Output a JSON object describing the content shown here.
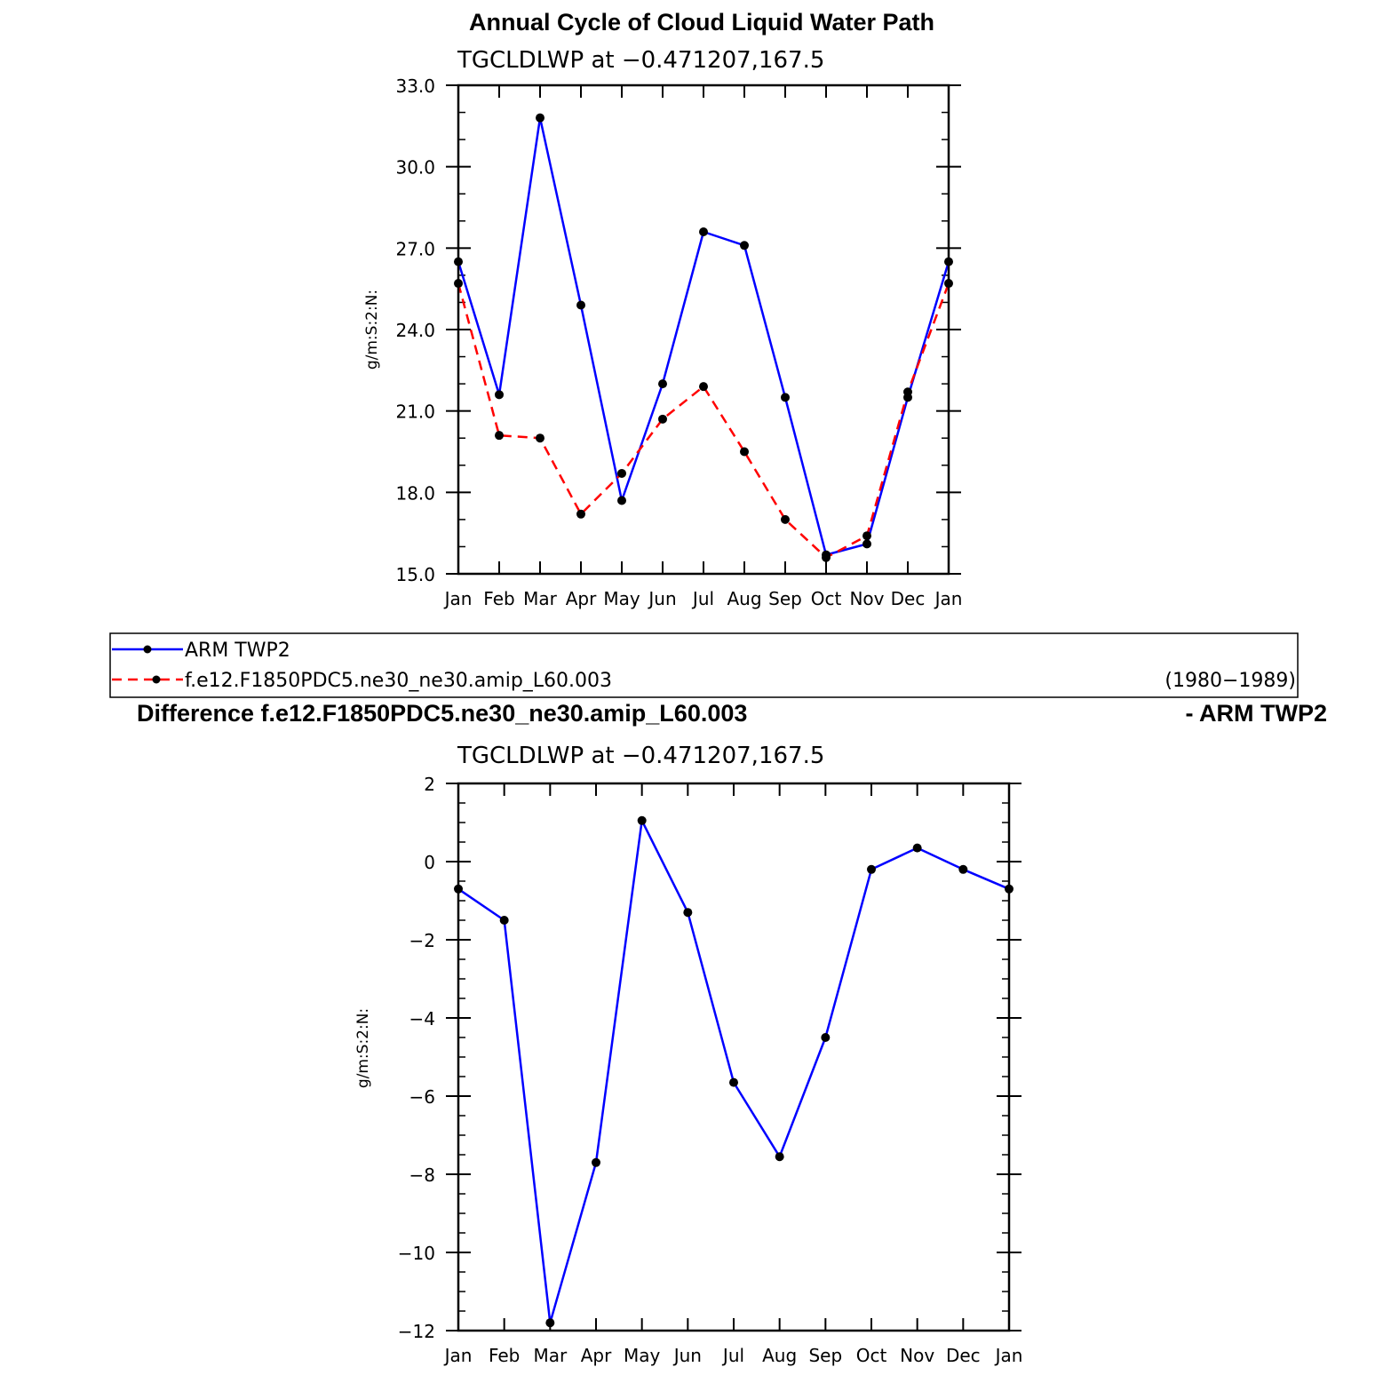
{
  "chart_data": [
    {
      "type": "line",
      "title": "Annual Cycle of Cloud Liquid Water Path",
      "subtitle": "TGCLDLWP  at  −0.471207,167.5",
      "ylabel": "g/m:S:2:N:",
      "ylim": [
        15.0,
        33.0
      ],
      "yticks": [
        "15.0",
        "18.0",
        "21.0",
        "24.0",
        "27.0",
        "30.0",
        "33.0"
      ],
      "categories": [
        "Jan",
        "Feb",
        "Mar",
        "Apr",
        "May",
        "Jun",
        "Jul",
        "Aug",
        "Sep",
        "Oct",
        "Nov",
        "Dec",
        "Jan"
      ],
      "series": [
        {
          "name": "ARM  TWP2",
          "color": "#0000ff",
          "dash": "solid",
          "values": [
            26.5,
            21.6,
            31.8,
            24.9,
            17.7,
            22.0,
            27.6,
            27.1,
            21.5,
            15.7,
            16.1,
            21.5,
            26.5
          ]
        },
        {
          "name": "f.e12.F1850PDC5.ne30_ne30.amip_L60.003",
          "color": "#ff0000",
          "dash": "dashed",
          "values": [
            25.7,
            20.1,
            20.0,
            17.2,
            18.7,
            20.7,
            21.9,
            19.5,
            17.0,
            15.6,
            16.4,
            21.7,
            25.7
          ]
        }
      ],
      "legend": {
        "entries": [
          "ARM  TWP2",
          "f.e12.F1850PDC5.ne30_ne30.amip_L60.003"
        ],
        "period": "(1980−1989)",
        "placement": "bottom"
      }
    },
    {
      "type": "line",
      "title": "Difference f.e12.F1850PDC5.ne30_ne30.amip_L60.003",
      "title_right": "- ARM TWP2",
      "subtitle": "TGCLDLWP  at  −0.471207,167.5",
      "ylabel": "g/m:S:2:N:",
      "ylim": [
        -12,
        2
      ],
      "yticks": [
        "−12",
        "−10",
        "−8",
        "−6",
        "−4",
        "−2",
        "0",
        "2"
      ],
      "categories": [
        "Jan",
        "Feb",
        "Mar",
        "Apr",
        "May",
        "Jun",
        "Jul",
        "Aug",
        "Sep",
        "Oct",
        "Nov",
        "Dec",
        "Jan"
      ],
      "series": [
        {
          "color": "#0000ff",
          "dash": "solid",
          "values": [
            -0.7,
            -1.5,
            -11.8,
            -7.7,
            1.05,
            -1.3,
            -5.65,
            -7.55,
            -4.5,
            -0.2,
            0.35,
            -0.2,
            -0.7
          ]
        }
      ]
    }
  ]
}
